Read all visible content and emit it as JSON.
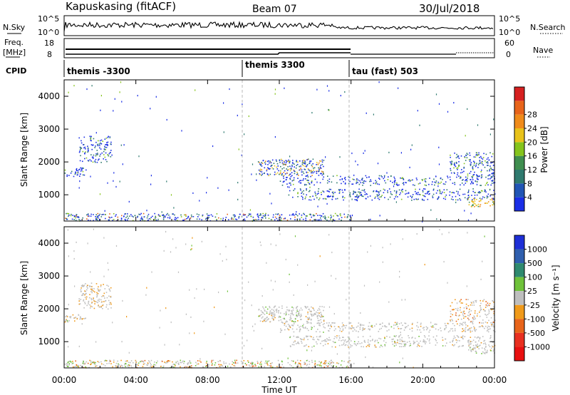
{
  "header": {
    "station": "Kapuskasing (fitACF)",
    "beam": "Beam 07",
    "date": "30/Jul/2018"
  },
  "top_panels": {
    "nsky_label": "N.Sky",
    "nsky_ticks": [
      "10^5",
      "10^0"
    ],
    "nsearch_label": "N.Search",
    "nsearch_ticks": [
      "10^5",
      "10^0"
    ],
    "freq_label": "Freq.",
    "freq_unit": "[MHz]",
    "freq_ticks": [
      "18",
      "8"
    ],
    "nave_label": "Nave",
    "nave_ticks": [
      "60",
      "0"
    ],
    "cpid_label": "CPID",
    "programs": [
      {
        "name": "themis -3300",
        "start_h": 0,
        "end_h": 10
      },
      {
        "name": "themis 3300",
        "start_h": 10,
        "end_h": 16
      },
      {
        "name": "tau (fast) 503",
        "start_h": 16,
        "end_h": 24
      }
    ]
  },
  "chart_data": [
    {
      "type": "heatmap",
      "title": "",
      "ylabel": "Slant Range [km]",
      "xlim_hours": [
        0,
        24
      ],
      "ylim": [
        200,
        4500
      ],
      "yticks": [
        "1000",
        "2000",
        "3000",
        "4000"
      ],
      "colorbar": {
        "label": "Power [dB]",
        "ticks": [
          "4",
          "8",
          "12",
          "16",
          "20",
          "24",
          "28"
        ],
        "colors": [
          "#1a2ee6",
          "#2155b5",
          "#2f7a6f",
          "#3f8e4f",
          "#85c41c",
          "#e8c21a",
          "#f08b1a",
          "#e8641a",
          "#d62020"
        ]
      },
      "scatter_regions": [
        {
          "t0": 0.0,
          "t1": 16.0,
          "r0": 220,
          "r1": 450,
          "level": 0.45
        },
        {
          "t0": 0.0,
          "t1": 1.2,
          "r0": 1550,
          "r1": 1850,
          "level": 0.35
        },
        {
          "t0": 0.8,
          "t1": 2.6,
          "r0": 2000,
          "r1": 2800,
          "level": 0.3
        },
        {
          "t0": 10.8,
          "t1": 14.5,
          "r0": 1600,
          "r1": 2100,
          "level": 0.55
        },
        {
          "t0": 12.0,
          "t1": 24.0,
          "r0": 1300,
          "r1": 1600,
          "level": 0.25
        },
        {
          "t0": 12.5,
          "t1": 24.0,
          "r0": 850,
          "r1": 1200,
          "level": 0.25
        },
        {
          "t0": 22.5,
          "t1": 24.0,
          "r0": 650,
          "r1": 900,
          "level": 0.6
        },
        {
          "t0": 21.5,
          "t1": 24.0,
          "r0": 1550,
          "r1": 2300,
          "level": 0.3
        }
      ]
    },
    {
      "type": "heatmap",
      "title": "",
      "ylabel": "Slant Range [km]",
      "xlim_hours": [
        0,
        24
      ],
      "ylim": [
        200,
        4500
      ],
      "yticks": [
        "1000",
        "2000",
        "3000",
        "4000"
      ],
      "colorbar": {
        "label": "Velocity [m s⁻¹]",
        "ticks": [
          "1000",
          "500",
          "100",
          "25",
          "-25",
          "-100",
          "-500",
          "-1000"
        ],
        "colors": [
          "#1e2fd6",
          "#2f5fae",
          "#2f8a6f",
          "#6fc23a",
          "#bebebe",
          "#f09a1a",
          "#e8641a",
          "#e83020",
          "#e81010"
        ]
      },
      "xticks": [
        "00:00",
        "04:00",
        "08:00",
        "12:00",
        "16:00",
        "20:00",
        "00:00"
      ],
      "xlabel": "Time UT"
    }
  ],
  "ui": {
    "colors": {
      "frame": "#000000",
      "divider": "#b8b8b8"
    }
  }
}
